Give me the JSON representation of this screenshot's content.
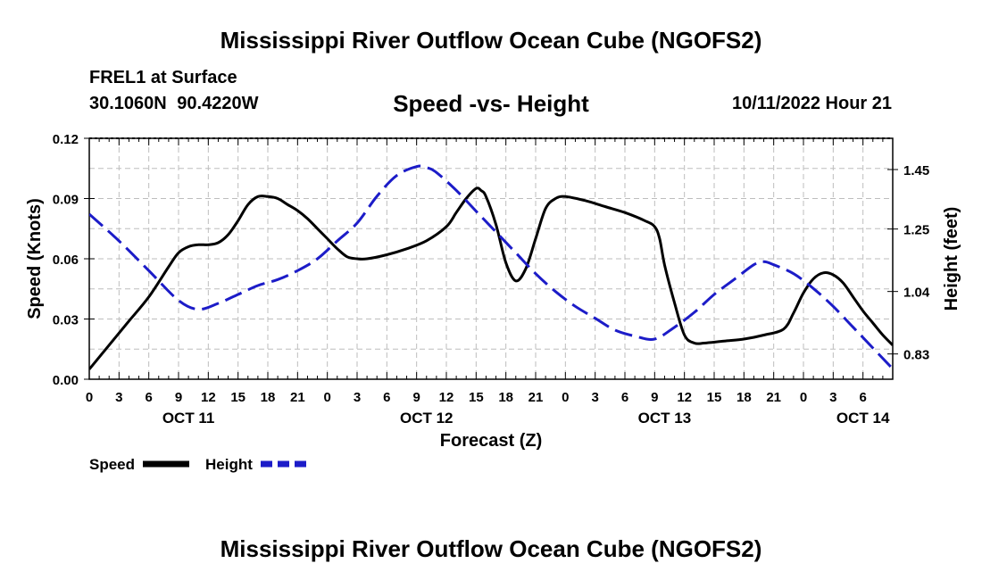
{
  "header": {
    "title": "Mississippi River Outflow Ocean Cube (NGOFS2)",
    "station": "FREL1 at Surface",
    "coords": "30.1060N  90.4220W",
    "subtitle": "Speed -vs- Height",
    "datetime": "10/11/2022 Hour 21"
  },
  "footer": {
    "title": "Mississippi River Outflow Ocean Cube (NGOFS2)"
  },
  "chart_data": {
    "type": "line",
    "xlabel": "Forecast (Z)",
    "ylabel": "Speed (Knots)",
    "y2label": "Height (feet)",
    "x_range": [
      0,
      81
    ],
    "x_unit": "hours from Oct 11 00Z",
    "ylim": [
      0,
      0.12
    ],
    "y2lim": [
      0.745,
      1.555
    ],
    "yticks": [
      "0.00",
      "0.03",
      "0.06",
      "0.09",
      "0.12"
    ],
    "y2ticks": [
      "0.83",
      "1.04",
      "1.25",
      "1.45"
    ],
    "xtick_labels": [
      "0",
      "3",
      "6",
      "9",
      "12",
      "15",
      "18",
      "21",
      "0",
      "3",
      "6",
      "9",
      "12",
      "15",
      "18",
      "21",
      "0",
      "3",
      "6",
      "9",
      "12",
      "15",
      "18",
      "21",
      "0",
      "3",
      "6"
    ],
    "day_labels": [
      {
        "label": "OCT 11",
        "hour": 10
      },
      {
        "label": "OCT 12",
        "hour": 34
      },
      {
        "label": "OCT 13",
        "hour": 58
      },
      {
        "label": "OCT 14",
        "hour": 78
      }
    ],
    "grid": true,
    "legend": [
      {
        "name": "Speed",
        "color": "#000000",
        "style": "solid"
      },
      {
        "name": "Height",
        "color": "#1c1cc8",
        "style": "dashed"
      }
    ],
    "series": [
      {
        "name": "Speed",
        "axis": "left",
        "color": "#000000",
        "x": [
          0,
          2,
          4,
          6,
          8,
          9,
          10,
          11,
          12,
          13,
          14,
          15,
          16,
          17,
          18,
          19,
          20,
          21,
          22,
          23,
          24,
          25,
          26,
          27,
          28,
          30,
          32,
          34,
          36,
          37,
          38,
          39,
          39.5,
          40,
          41,
          42,
          43,
          44,
          45,
          46,
          47,
          48,
          50,
          52,
          54,
          56,
          57,
          57.5,
          58,
          59,
          60,
          61,
          62,
          64,
          66,
          68,
          70,
          71,
          72,
          73,
          74,
          75,
          76,
          77,
          78,
          79,
          80,
          81
        ],
        "values": [
          0.005,
          0.017,
          0.029,
          0.041,
          0.056,
          0.063,
          0.066,
          0.067,
          0.067,
          0.068,
          0.072,
          0.079,
          0.087,
          0.091,
          0.091,
          0.09,
          0.087,
          0.084,
          0.08,
          0.075,
          0.07,
          0.065,
          0.061,
          0.06,
          0.06,
          0.062,
          0.065,
          0.069,
          0.076,
          0.083,
          0.09,
          0.095,
          0.094,
          0.091,
          0.077,
          0.058,
          0.049,
          0.055,
          0.07,
          0.085,
          0.09,
          0.091,
          0.089,
          0.086,
          0.083,
          0.079,
          0.076,
          0.07,
          0.057,
          0.038,
          0.022,
          0.018,
          0.018,
          0.019,
          0.02,
          0.022,
          0.025,
          0.033,
          0.043,
          0.05,
          0.053,
          0.052,
          0.048,
          0.041,
          0.034,
          0.028,
          0.022,
          0.017
        ]
      },
      {
        "name": "Height",
        "axis": "right",
        "color": "#1c1cc8",
        "x": [
          0,
          3,
          6,
          9,
          11,
          13,
          15,
          17,
          19,
          21,
          23,
          25,
          27,
          29,
          31,
          33,
          34,
          35,
          37,
          39,
          41,
          43,
          45,
          47,
          49,
          51,
          53,
          55,
          57,
          59,
          61,
          63,
          65,
          67,
          68,
          69,
          71,
          73,
          75,
          77,
          79,
          81
        ],
        "values": [
          1.3,
          1.21,
          1.11,
          1.01,
          0.98,
          1.0,
          1.03,
          1.06,
          1.08,
          1.11,
          1.15,
          1.21,
          1.27,
          1.36,
          1.43,
          1.46,
          1.457,
          1.44,
          1.38,
          1.31,
          1.24,
          1.17,
          1.1,
          1.04,
          0.99,
          0.95,
          0.91,
          0.89,
          0.88,
          0.92,
          0.97,
          1.03,
          1.08,
          1.13,
          1.14,
          1.13,
          1.1,
          1.05,
          0.99,
          0.92,
          0.85,
          0.78
        ]
      }
    ]
  }
}
